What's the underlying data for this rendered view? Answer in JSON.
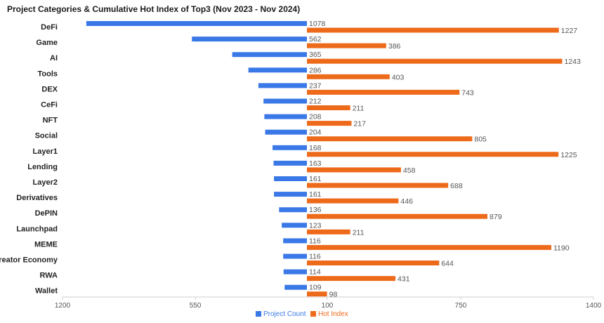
{
  "chart_data": {
    "type": "bar",
    "title": "Project Categories & Cumulative Hot Index of Top3 (Nov 2023 - Nov 2024)",
    "categories": [
      "DeFi",
      "Game",
      "AI",
      "Tools",
      "DEX",
      "CeFi",
      "NFT",
      "Social",
      "Layer1",
      "Lending",
      "Layer2",
      "Derivatives",
      "DePIN",
      "Launchpad",
      "MEME",
      "Creator Economy",
      "RWA",
      "Wallet"
    ],
    "series": [
      {
        "name": "Project Count",
        "values": [
          1078,
          562,
          365,
          286,
          237,
          212,
          208,
          204,
          168,
          163,
          161,
          161,
          136,
          123,
          116,
          116,
          114,
          109
        ],
        "color": "#3b78e7"
      },
      {
        "name": "Hot Index",
        "values": [
          1227,
          386,
          1243,
          403,
          743,
          211,
          217,
          805,
          1225,
          458,
          688,
          446,
          879,
          211,
          1190,
          644,
          431,
          98
        ],
        "color": "#ee6a1b"
      }
    ],
    "x_ticks": [
      "1200",
      "550",
      "100",
      "750",
      "1400"
    ],
    "legend_position": "bottom",
    "grid": false
  }
}
